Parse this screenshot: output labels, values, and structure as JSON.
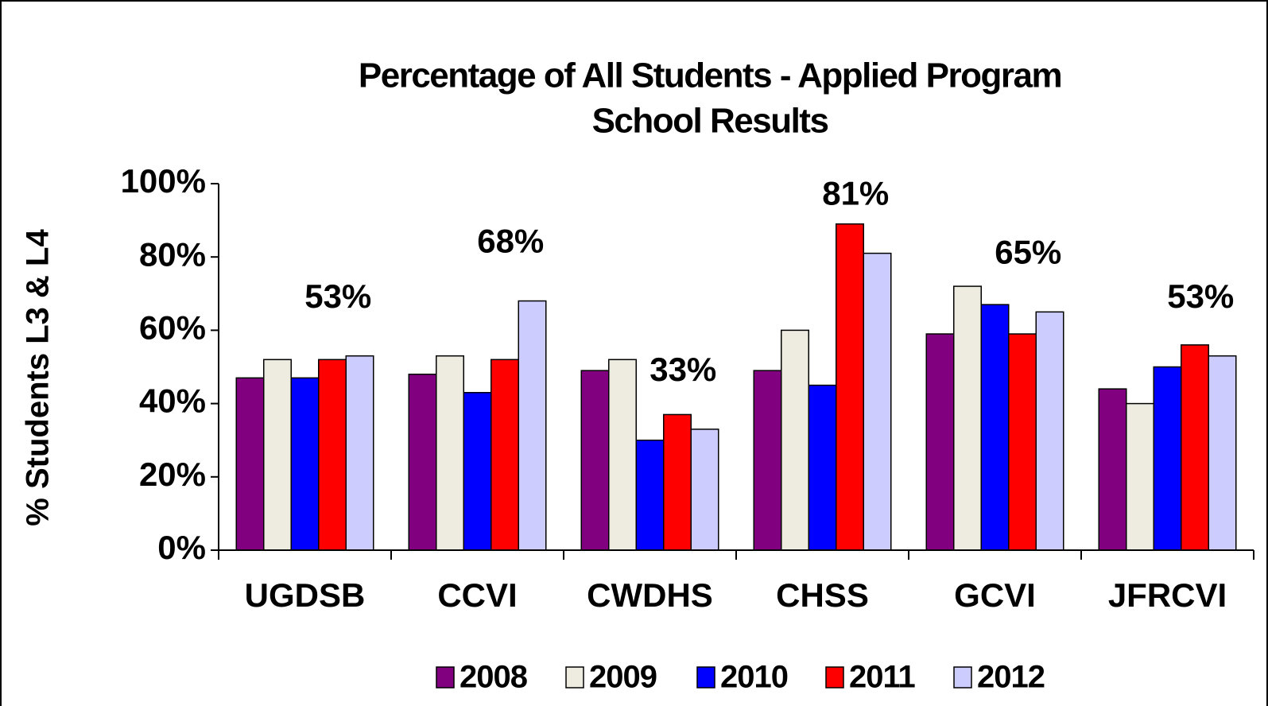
{
  "chart_data": {
    "type": "bar",
    "title": [
      "Percentage of All Students - Applied Program",
      "School Results"
    ],
    "y_label": "% Students  L3 & L4",
    "categories": [
      "UGDSB",
      "CCVI",
      "CWDHS",
      "CHSS",
      "GCVI",
      "JFRCVI"
    ],
    "series": [
      {
        "name": "2008",
        "color": "#800080",
        "values": [
          47,
          48,
          49,
          49,
          59,
          44
        ]
      },
      {
        "name": "2009",
        "color": "#eeece1",
        "values": [
          52,
          53,
          52,
          60,
          72,
          40
        ]
      },
      {
        "name": "2010",
        "color": "#0000ff",
        "values": [
          47,
          43,
          30,
          45,
          67,
          50
        ]
      },
      {
        "name": "2011",
        "color": "#ff0000",
        "values": [
          52,
          52,
          37,
          89,
          59,
          56
        ]
      },
      {
        "name": "2012",
        "color": "#ccccff",
        "values": [
          53,
          68,
          33,
          81,
          65,
          53
        ],
        "value_labels": [
          "53%",
          "68%",
          "33%",
          "81%",
          "65%",
          "53%"
        ]
      }
    ],
    "ylim": [
      0,
      100
    ],
    "yticks": [
      {
        "value": 0,
        "label": "0%"
      },
      {
        "value": 20,
        "label": "20%"
      },
      {
        "value": 40,
        "label": "40%"
      },
      {
        "value": 60,
        "label": "60%"
      },
      {
        "value": 80,
        "label": "80%"
      },
      {
        "value": 100,
        "label": "100%"
      }
    ],
    "grid": false,
    "legend": "bottom"
  }
}
